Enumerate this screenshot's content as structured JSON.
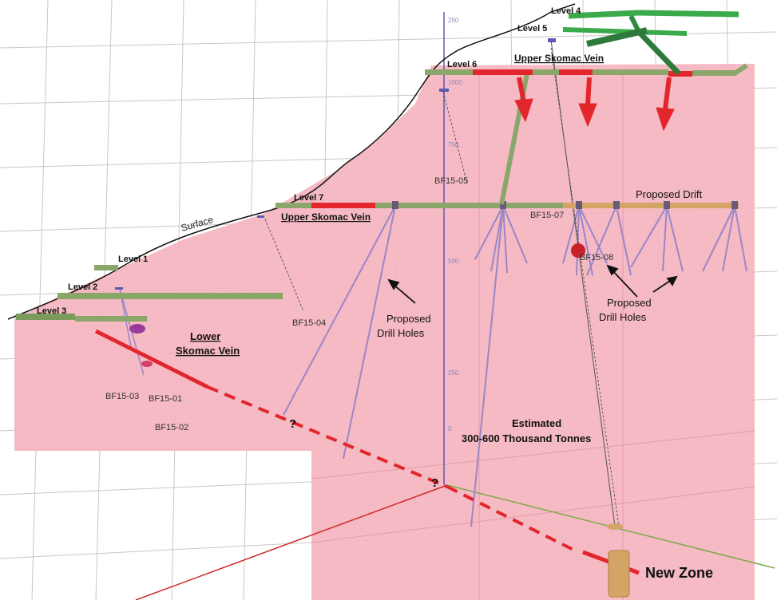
{
  "levels": {
    "level1": "Level 1",
    "level2": "Level 2",
    "level3": "Level 3",
    "level4": "Level 4",
    "level5": "Level 5",
    "level6": "Level 6",
    "level7": "Level 7"
  },
  "labels": {
    "surface": "Surface",
    "upper_vein_top": "Upper Skomac Vein",
    "upper_vein_mid": "Upper Skomac Vein",
    "lower_vein_line1": "Lower",
    "lower_vein_line2": "Skomac Vein",
    "proposed_drift": "Proposed Drift",
    "proposed_drill_left_1": "Proposed",
    "proposed_drill_left_2": "Drill Holes",
    "proposed_drill_right_1": "Proposed",
    "proposed_drill_right_2": "Drill Holes",
    "estimate_line1": "Estimated",
    "estimate_line2": "300-600 Thousand Tonnes",
    "new_zone": "New Zone",
    "question_1": "?",
    "question_2": "?"
  },
  "drill_holes": {
    "bf15_01": "BF15-01",
    "bf15_02": "BF15-02",
    "bf15_03": "BF15-03",
    "bf15_04": "BF15-04",
    "bf15_05": "BF15-05",
    "bf15_07": "BF15-07",
    "bf15_08": "BF15-08"
  },
  "axis_ticks": [
    "250",
    "1000",
    "750",
    "500",
    "250",
    "250",
    "0"
  ],
  "colors": {
    "zone_fill": "#f4b4be",
    "drift_green": "#8aa66a",
    "high_level_green": "#3aaa4a",
    "vein_red": "#e3262b",
    "drill_purple": "#9a86c8",
    "proposed_drift_tan": "#d4a466",
    "grid": "#c8c8c8"
  }
}
